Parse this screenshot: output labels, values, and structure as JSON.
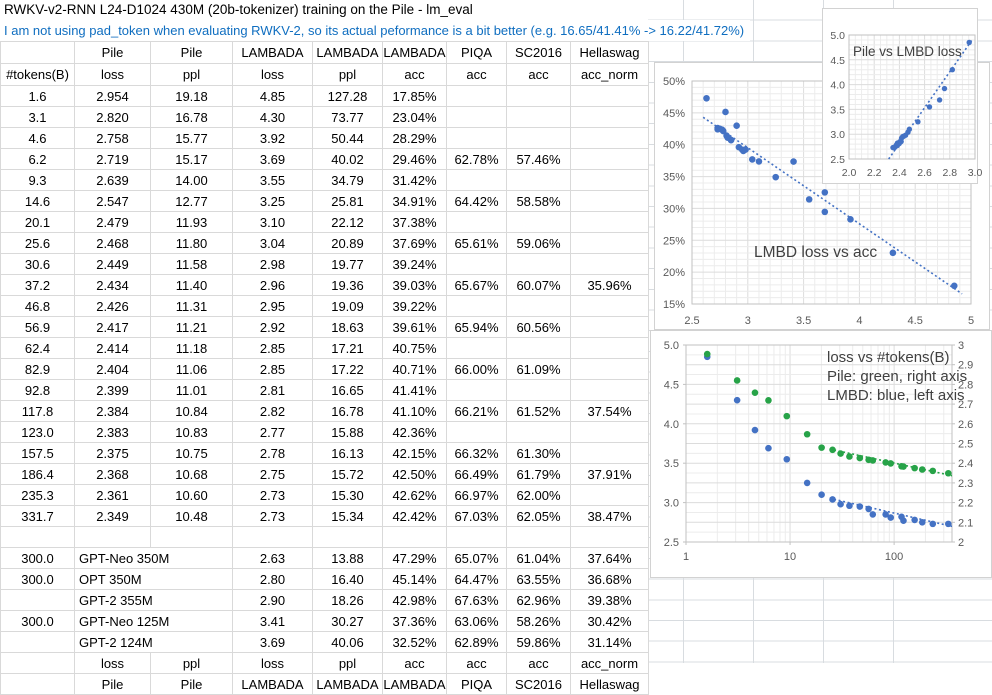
{
  "title": "RWKV-v2-RNN L24-D1024 430M (20b-tokenizer) training on the Pile - lm_eval",
  "note": "I am not using pad_token when evaluating RWKV-2, so its actual peformance is a bit better (e.g. 16.65/41.41% -> 16.22/41.72%)",
  "colors": {
    "note_blue": "#0f6ec0",
    "point_blue": "#4472c4",
    "point_green": "#27a348",
    "cell_border": "#d9d9d9",
    "axis_text": "#595959",
    "chart_title_text": "#404040"
  },
  "table": {
    "header_row1": [
      "",
      "Pile",
      "Pile",
      "LAMBADA",
      "LAMBADA",
      "LAMBADA",
      "PIQA",
      "SC2016",
      "Hellaswag"
    ],
    "header_row2": [
      "#tokens(B)",
      "loss",
      "ppl",
      "loss",
      "ppl",
      "acc",
      "acc",
      "acc",
      "acc_norm"
    ],
    "rows": [
      [
        "1.6",
        "2.954",
        "19.18",
        "4.85",
        "127.28",
        "17.85%",
        "",
        "",
        ""
      ],
      [
        "3.1",
        "2.820",
        "16.78",
        "4.30",
        "73.77",
        "23.04%",
        "",
        "",
        ""
      ],
      [
        "4.6",
        "2.758",
        "15.77",
        "3.92",
        "50.44",
        "28.29%",
        "",
        "",
        ""
      ],
      [
        "6.2",
        "2.719",
        "15.17",
        "3.69",
        "40.02",
        "29.46%",
        "62.78%",
        "57.46%",
        ""
      ],
      [
        "9.3",
        "2.639",
        "14.00",
        "3.55",
        "34.79",
        "31.42%",
        "",
        "",
        ""
      ],
      [
        "14.6",
        "2.547",
        "12.77",
        "3.25",
        "25.81",
        "34.91%",
        "64.42%",
        "58.58%",
        ""
      ],
      [
        "20.1",
        "2.479",
        "11.93",
        "3.10",
        "22.12",
        "37.38%",
        "",
        "",
        ""
      ],
      [
        "25.6",
        "2.468",
        "11.80",
        "3.04",
        "20.89",
        "37.69%",
        "65.61%",
        "59.06%",
        ""
      ],
      [
        "30.6",
        "2.449",
        "11.58",
        "2.98",
        "19.77",
        "39.24%",
        "",
        "",
        ""
      ],
      [
        "37.2",
        "2.434",
        "11.40",
        "2.96",
        "19.36",
        "39.03%",
        "65.67%",
        "60.07%",
        "35.96%"
      ],
      [
        "46.8",
        "2.426",
        "11.31",
        "2.95",
        "19.09",
        "39.22%",
        "",
        "",
        ""
      ],
      [
        "56.9",
        "2.417",
        "11.21",
        "2.92",
        "18.63",
        "39.61%",
        "65.94%",
        "60.56%",
        ""
      ],
      [
        "62.4",
        "2.414",
        "11.18",
        "2.85",
        "17.21",
        "40.75%",
        "",
        "",
        ""
      ],
      [
        "82.9",
        "2.404",
        "11.06",
        "2.85",
        "17.22",
        "40.71%",
        "66.00%",
        "61.09%",
        ""
      ],
      [
        "92.8",
        "2.399",
        "11.01",
        "2.81",
        "16.65",
        "41.41%",
        "",
        "",
        ""
      ],
      [
        "117.8",
        "2.384",
        "10.84",
        "2.82",
        "16.78",
        "41.10%",
        "66.21%",
        "61.52%",
        "37.54%"
      ],
      [
        "123.0",
        "2.383",
        "10.83",
        "2.77",
        "15.88",
        "42.36%",
        "",
        "",
        ""
      ],
      [
        "157.5",
        "2.375",
        "10.75",
        "2.78",
        "16.13",
        "42.15%",
        "66.32%",
        "61.30%",
        ""
      ],
      [
        "186.4",
        "2.368",
        "10.68",
        "2.75",
        "15.72",
        "42.50%",
        "66.49%",
        "61.79%",
        "37.91%"
      ],
      [
        "235.3",
        "2.361",
        "10.60",
        "2.73",
        "15.30",
        "42.62%",
        "66.97%",
        "62.00%",
        ""
      ],
      [
        "331.7",
        "2.349",
        "10.48",
        "2.73",
        "15.34",
        "42.42%",
        "67.03%",
        "62.05%",
        "38.47%"
      ]
    ],
    "model_rows": [
      [
        "300.0",
        "GPT-Neo 350M",
        "2.63",
        "13.88",
        "47.29%",
        "65.07%",
        "61.04%",
        "37.64%"
      ],
      [
        "300.0",
        "OPT 350M",
        "2.80",
        "16.40",
        "45.14%",
        "64.47%",
        "63.55%",
        "36.68%"
      ],
      [
        "",
        "GPT-2 355M",
        "2.90",
        "18.26",
        "42.98%",
        "67.63%",
        "62.96%",
        "39.38%"
      ],
      [
        "300.0",
        "GPT-Neo 125M",
        "3.41",
        "30.27",
        "37.36%",
        "63.06%",
        "58.26%",
        "30.42%"
      ],
      [
        "",
        "GPT-2 124M",
        "3.69",
        "40.06",
        "32.52%",
        "62.89%",
        "59.86%",
        "31.14%"
      ]
    ],
    "footer_row1": [
      "",
      "loss",
      "ppl",
      "loss",
      "ppl",
      "acc",
      "acc",
      "acc",
      "acc_norm"
    ],
    "footer_row2": [
      "",
      "Pile",
      "Pile",
      "LAMBADA",
      "LAMBADA",
      "LAMBADA",
      "PIQA",
      "SC2016",
      "Hellaswag"
    ]
  },
  "chart_data": [
    {
      "id": "lmbd-loss-vs-acc",
      "type": "scatter",
      "title": "LMBD loss vs acc",
      "xlim": [
        2.5,
        5.0
      ],
      "x_ticks": [
        2.5,
        3,
        3.5,
        4,
        4.5,
        5
      ],
      "x_tick_labels": [
        "2.5",
        "3",
        "3.5",
        "4",
        "4.5",
        "5"
      ],
      "y_left": {
        "lim": [
          15,
          50
        ],
        "ticks": [
          15,
          20,
          25,
          30,
          35,
          40,
          45,
          50
        ],
        "labels": [
          "15%",
          "20%",
          "25%",
          "30%",
          "35%",
          "40%",
          "45%",
          "50%"
        ]
      },
      "grid": true,
      "series": [
        {
          "name": "LAMBADA acc vs loss",
          "color": "#4472c4",
          "axis": "left",
          "points": [
            [
              4.85,
              17.85
            ],
            [
              4.3,
              23.04
            ],
            [
              3.92,
              28.29
            ],
            [
              3.69,
              29.46
            ],
            [
              3.55,
              31.42
            ],
            [
              3.25,
              34.91
            ],
            [
              3.1,
              37.38
            ],
            [
              3.04,
              37.69
            ],
            [
              2.98,
              39.24
            ],
            [
              2.96,
              39.03
            ],
            [
              2.95,
              39.22
            ],
            [
              2.92,
              39.61
            ],
            [
              2.85,
              40.75
            ],
            [
              2.85,
              40.71
            ],
            [
              2.81,
              41.41
            ],
            [
              2.82,
              41.1
            ],
            [
              2.77,
              42.36
            ],
            [
              2.78,
              42.15
            ],
            [
              2.75,
              42.5
            ],
            [
              2.73,
              42.62
            ],
            [
              2.73,
              42.42
            ],
            [
              2.63,
              47.29
            ],
            [
              2.8,
              45.14
            ],
            [
              2.9,
              42.98
            ],
            [
              3.41,
              37.36
            ],
            [
              3.69,
              32.52
            ]
          ]
        }
      ],
      "trendlines": [
        {
          "color": "#4472c4",
          "axis": "left",
          "p1": [
            2.6,
            44.3
          ],
          "p2": [
            4.92,
            16.6
          ]
        }
      ]
    },
    {
      "id": "loss-vs-tokens",
      "type": "scatter",
      "title_lines": [
        "loss vs #tokens(B)",
        "Pile: green, right axis",
        "LMBD: blue, left axis"
      ],
      "x_log": true,
      "xlim": [
        1,
        360
      ],
      "x_ticks": [
        1,
        10,
        100
      ],
      "x_tick_labels": [
        "1",
        "10",
        "100"
      ],
      "y_left": {
        "lim": [
          2.5,
          5.0
        ],
        "ticks": [
          5.0,
          4.5,
          4.0,
          3.5,
          3.0,
          2.5
        ],
        "labels": [
          "5.0",
          "4.5",
          "4.0",
          "3.5",
          "3.0",
          "2.5"
        ]
      },
      "y_right": {
        "lim": [
          2,
          3
        ],
        "ticks": [
          3,
          2.9,
          2.8,
          2.7,
          2.6,
          2.5,
          2.4,
          2.3,
          2.2,
          2.1,
          2
        ],
        "labels": [
          "3",
          "2.9",
          "2.8",
          "2.7",
          "2.6",
          "2.5",
          "2.4",
          "2.3",
          "2.2",
          "2.1",
          "2"
        ]
      },
      "grid": true,
      "series": [
        {
          "name": "LMBD",
          "color": "#4472c4",
          "axis": "left",
          "points": [
            [
              1.6,
              4.85
            ],
            [
              3.1,
              4.3
            ],
            [
              4.6,
              3.92
            ],
            [
              6.2,
              3.69
            ],
            [
              9.3,
              3.55
            ],
            [
              14.6,
              3.25
            ],
            [
              20.1,
              3.1
            ],
            [
              25.6,
              3.04
            ],
            [
              30.6,
              2.98
            ],
            [
              37.2,
              2.96
            ],
            [
              46.8,
              2.95
            ],
            [
              56.9,
              2.92
            ],
            [
              62.4,
              2.85
            ],
            [
              82.9,
              2.85
            ],
            [
              92.8,
              2.81
            ],
            [
              117.8,
              2.82
            ],
            [
              123.0,
              2.77
            ],
            [
              157.5,
              2.78
            ],
            [
              186.4,
              2.75
            ],
            [
              235.3,
              2.73
            ],
            [
              331.7,
              2.73
            ]
          ]
        },
        {
          "name": "Pile",
          "color": "#27a348",
          "axis": "right",
          "points": [
            [
              1.6,
              2.954
            ],
            [
              3.1,
              2.82
            ],
            [
              4.6,
              2.758
            ],
            [
              6.2,
              2.719
            ],
            [
              9.3,
              2.639
            ],
            [
              14.6,
              2.547
            ],
            [
              20.1,
              2.479
            ],
            [
              25.6,
              2.468
            ],
            [
              30.6,
              2.449
            ],
            [
              37.2,
              2.434
            ],
            [
              46.8,
              2.426
            ],
            [
              56.9,
              2.417
            ],
            [
              62.4,
              2.414
            ],
            [
              82.9,
              2.404
            ],
            [
              92.8,
              2.399
            ],
            [
              117.8,
              2.384
            ],
            [
              123.0,
              2.383
            ],
            [
              157.5,
              2.375
            ],
            [
              186.4,
              2.368
            ],
            [
              235.3,
              2.361
            ],
            [
              331.7,
              2.349
            ]
          ]
        }
      ],
      "trendlines": [
        {
          "color": "#4472c4",
          "axis": "left",
          "p1": [
            24,
            3.055
          ],
          "p2": [
            430,
            2.675
          ]
        },
        {
          "color": "#27a348",
          "axis": "right",
          "p1": [
            24,
            2.472
          ],
          "p2": [
            430,
            2.328
          ]
        }
      ]
    },
    {
      "id": "pile-vs-lmbd",
      "type": "scatter",
      "title": "Pile vs LMBD loss",
      "xlim": [
        2.0,
        3.0
      ],
      "x_ticks": [
        2.0,
        2.2,
        2.4,
        2.6,
        2.8,
        3.0
      ],
      "x_tick_labels": [
        "2.0",
        "2.2",
        "2.4",
        "2.6",
        "2.8",
        "3.0"
      ],
      "y_left": {
        "lim": [
          2.5,
          5.0
        ],
        "ticks": [
          5.0,
          4.5,
          4.0,
          3.5,
          3.0,
          2.5
        ],
        "labels": [
          "5.0",
          "4.5",
          "4.0",
          "3.5",
          "3.0",
          "2.5"
        ]
      },
      "grid": true,
      "series": [
        {
          "name": "Pile loss vs LAMBADA loss",
          "color": "#4472c4",
          "axis": "left",
          "points": [
            [
              2.954,
              4.85
            ],
            [
              2.82,
              4.3
            ],
            [
              2.758,
              3.92
            ],
            [
              2.719,
              3.69
            ],
            [
              2.639,
              3.55
            ],
            [
              2.547,
              3.25
            ],
            [
              2.479,
              3.1
            ],
            [
              2.468,
              3.04
            ],
            [
              2.449,
              2.98
            ],
            [
              2.434,
              2.96
            ],
            [
              2.426,
              2.95
            ],
            [
              2.417,
              2.92
            ],
            [
              2.414,
              2.85
            ],
            [
              2.404,
              2.85
            ],
            [
              2.399,
              2.81
            ],
            [
              2.384,
              2.82
            ],
            [
              2.383,
              2.77
            ],
            [
              2.375,
              2.78
            ],
            [
              2.368,
              2.75
            ],
            [
              2.361,
              2.73
            ],
            [
              2.349,
              2.73
            ]
          ]
        }
      ],
      "trendlines": [
        {
          "color": "#4472c4",
          "axis": "left",
          "p1": [
            2.315,
            2.5
          ],
          "p2": [
            2.985,
            4.93
          ]
        }
      ]
    }
  ]
}
